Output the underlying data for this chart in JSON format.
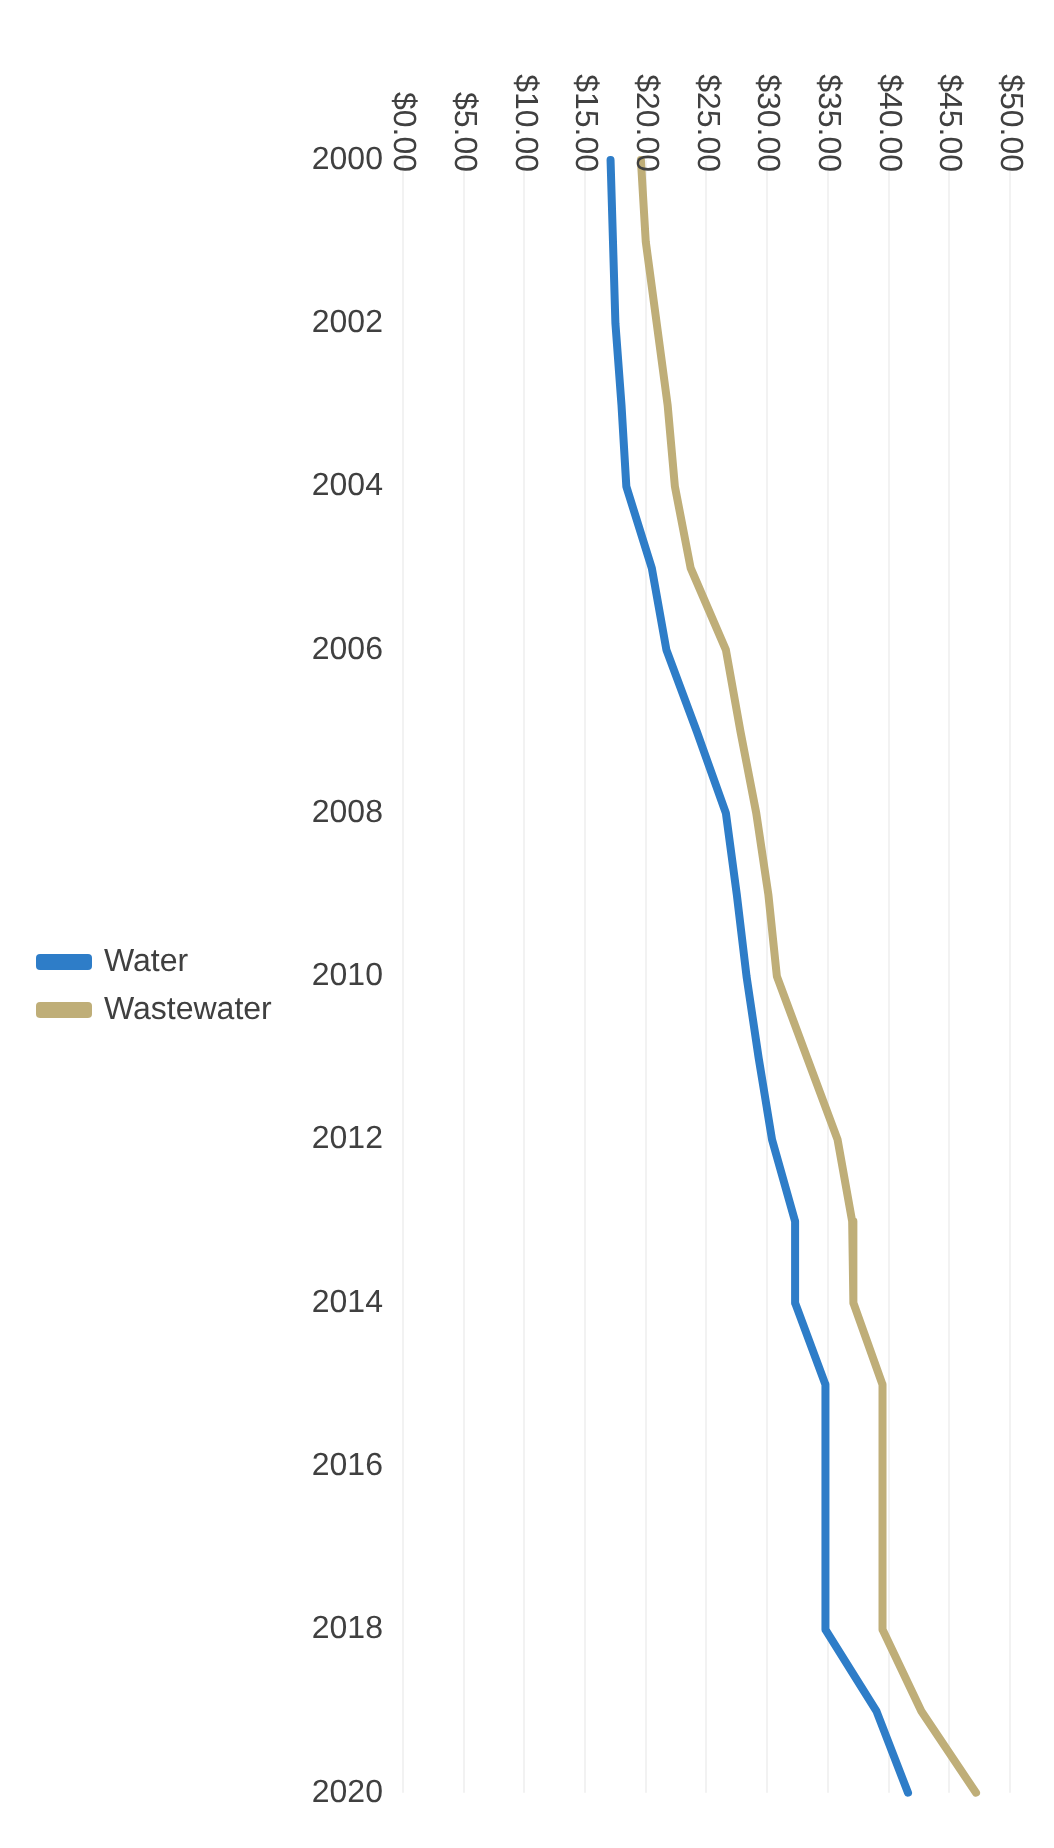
{
  "chart_data": {
    "type": "line",
    "orientation": "horizontal",
    "categories": [
      "2000",
      null,
      "2002",
      null,
      "2004",
      null,
      "2006",
      null,
      "2008",
      null,
      "2010",
      null,
      "2012",
      null,
      "2014",
      null,
      "2016",
      null,
      "2018",
      null,
      "2020"
    ],
    "series": [
      {
        "name": "Water",
        "color": "#2e7dc8",
        "values": [
          17.1,
          17.3,
          17.5,
          18.0,
          18.4,
          20.5,
          21.7,
          24.2,
          26.6,
          27.5,
          28.3,
          29.3,
          30.4,
          32.3,
          32.3,
          34.8,
          34.8,
          34.8,
          34.8,
          39.0,
          41.6
        ]
      },
      {
        "name": "Wastewater",
        "color": "#bfae78",
        "values": [
          19.6,
          20.0,
          20.9,
          21.8,
          22.4,
          23.7,
          26.6,
          27.8,
          29.1,
          30.1,
          30.8,
          33.3,
          35.8,
          37.0,
          37.1,
          39.5,
          39.5,
          39.5,
          39.5,
          42.7,
          47.2
        ]
      }
    ],
    "xlim": [
      0,
      50
    ],
    "xticks": [
      {
        "value": 0,
        "label": "$0.00"
      },
      {
        "value": 5,
        "label": "$5.00"
      },
      {
        "value": 10,
        "label": "$10.00"
      },
      {
        "value": 15,
        "label": "$15.00"
      },
      {
        "value": 20,
        "label": "$20.00"
      },
      {
        "value": 25,
        "label": "$25.00"
      },
      {
        "value": 30,
        "label": "$30.00"
      },
      {
        "value": 35,
        "label": "$35.00"
      },
      {
        "value": 40,
        "label": "$40.00"
      },
      {
        "value": 45,
        "label": "$45.00"
      },
      {
        "value": 50,
        "label": "$50.00"
      }
    ],
    "grid": "x",
    "legend": "left",
    "marker": "none",
    "line_style": "solid"
  }
}
